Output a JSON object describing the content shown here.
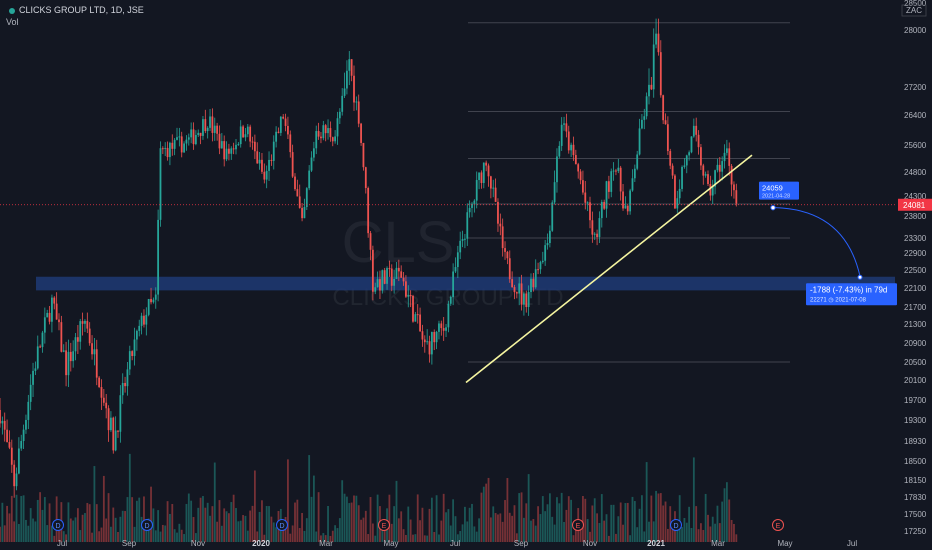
{
  "header": {
    "symbol": "CLICKS GROUP LTD, 1D, JSE",
    "volume_label": "Vol",
    "status_color": "#26a69a"
  },
  "currency_box": "ZAC",
  "watermark": {
    "ticker": "CLS",
    "name": "CLICKS GROUP LTD"
  },
  "colors": {
    "background": "#131722",
    "up": "#26a69a",
    "down": "#ef5350",
    "zone": "#1e3a78",
    "trendline": "#f5f5a0",
    "fib": "#9598a1",
    "callout": "#2962ff",
    "last_price": "#f23645"
  },
  "chart_data": {
    "type": "candlestick",
    "title": "CLICKS GROUP LTD, 1D, JSE",
    "ylabel": "",
    "xlabel": "",
    "scale": "linear",
    "ylim": [
      17000,
      28600
    ],
    "grid": false,
    "y_ticks": [
      17250,
      17500,
      17830,
      18150,
      18500,
      18930,
      19300,
      19700,
      20100,
      20500,
      20900,
      21300,
      21700,
      22100,
      22500,
      22900,
      23300,
      23800,
      24300,
      24800,
      25600,
      26400,
      27200,
      28000,
      28500
    ],
    "x_ticks": [
      {
        "label": "Jul",
        "bold": false
      },
      {
        "label": "Sep",
        "bold": false
      },
      {
        "label": "Nov",
        "bold": false
      },
      {
        "label": "2020",
        "bold": true
      },
      {
        "label": "Mar",
        "bold": false
      },
      {
        "label": "May",
        "bold": false
      },
      {
        "label": "Jul",
        "bold": false
      },
      {
        "label": "Sep",
        "bold": false
      },
      {
        "label": "Nov",
        "bold": false
      },
      {
        "label": "2021",
        "bold": true
      },
      {
        "label": "Mar",
        "bold": false
      },
      {
        "label": "May",
        "bold": false
      },
      {
        "label": "Jul",
        "bold": false
      }
    ],
    "anchors": [
      {
        "t": 0,
        "p": 19500
      },
      {
        "t": 3,
        "p": 18100
      },
      {
        "t": 7,
        "p": 20300
      },
      {
        "t": 11,
        "p": 21800
      },
      {
        "t": 14,
        "p": 20400
      },
      {
        "t": 18,
        "p": 21400
      },
      {
        "t": 22,
        "p": 19800
      },
      {
        "t": 24,
        "p": 18900
      },
      {
        "t": 28,
        "p": 20700
      },
      {
        "t": 31,
        "p": 21600
      },
      {
        "t": 33,
        "p": 21800
      },
      {
        "t": 34,
        "p": 25400
      },
      {
        "t": 40,
        "p": 25700
      },
      {
        "t": 44,
        "p": 26300
      },
      {
        "t": 48,
        "p": 25300
      },
      {
        "t": 52,
        "p": 26100
      },
      {
        "t": 56,
        "p": 24600
      },
      {
        "t": 60,
        "p": 26400
      },
      {
        "t": 64,
        "p": 23500
      },
      {
        "t": 67,
        "p": 26000
      },
      {
        "t": 71,
        "p": 25900
      },
      {
        "t": 74,
        "p": 27600
      },
      {
        "t": 76,
        "p": 26400
      },
      {
        "t": 79,
        "p": 22200
      },
      {
        "t": 85,
        "p": 22400
      },
      {
        "t": 90,
        "p": 20800
      },
      {
        "t": 94,
        "p": 21200
      },
      {
        "t": 98,
        "p": 23300
      },
      {
        "t": 103,
        "p": 25200
      },
      {
        "t": 107,
        "p": 22700
      },
      {
        "t": 111,
        "p": 21800
      },
      {
        "t": 116,
        "p": 23200
      },
      {
        "t": 119,
        "p": 26200
      },
      {
        "t": 123,
        "p": 24600
      },
      {
        "t": 126,
        "p": 23200
      },
      {
        "t": 130,
        "p": 25100
      },
      {
        "t": 133,
        "p": 23800
      },
      {
        "t": 136,
        "p": 26200
      },
      {
        "t": 139,
        "p": 27900
      },
      {
        "t": 143,
        "p": 24200
      },
      {
        "t": 147,
        "p": 25900
      },
      {
        "t": 150,
        "p": 24300
      },
      {
        "t": 154,
        "p": 25400
      },
      {
        "t": 156,
        "p": 24100
      }
    ],
    "support_zone": [
      22050,
      22350
    ],
    "fib_levels": [
      20500,
      23300,
      24100,
      25200,
      26500,
      28100
    ],
    "trendline": {
      "start": 20050,
      "end": 25300
    },
    "last_price": "24081",
    "forecast": {
      "start_price": "24059",
      "start_date": "2021-04-28",
      "change": "-1788 (-7.43%) in 79d",
      "target_price": "22271",
      "target_date": "2021-07-08"
    },
    "events": [
      "D",
      "D",
      "D",
      "E",
      "D",
      "E",
      "E",
      "D",
      "E",
      "E"
    ]
  }
}
